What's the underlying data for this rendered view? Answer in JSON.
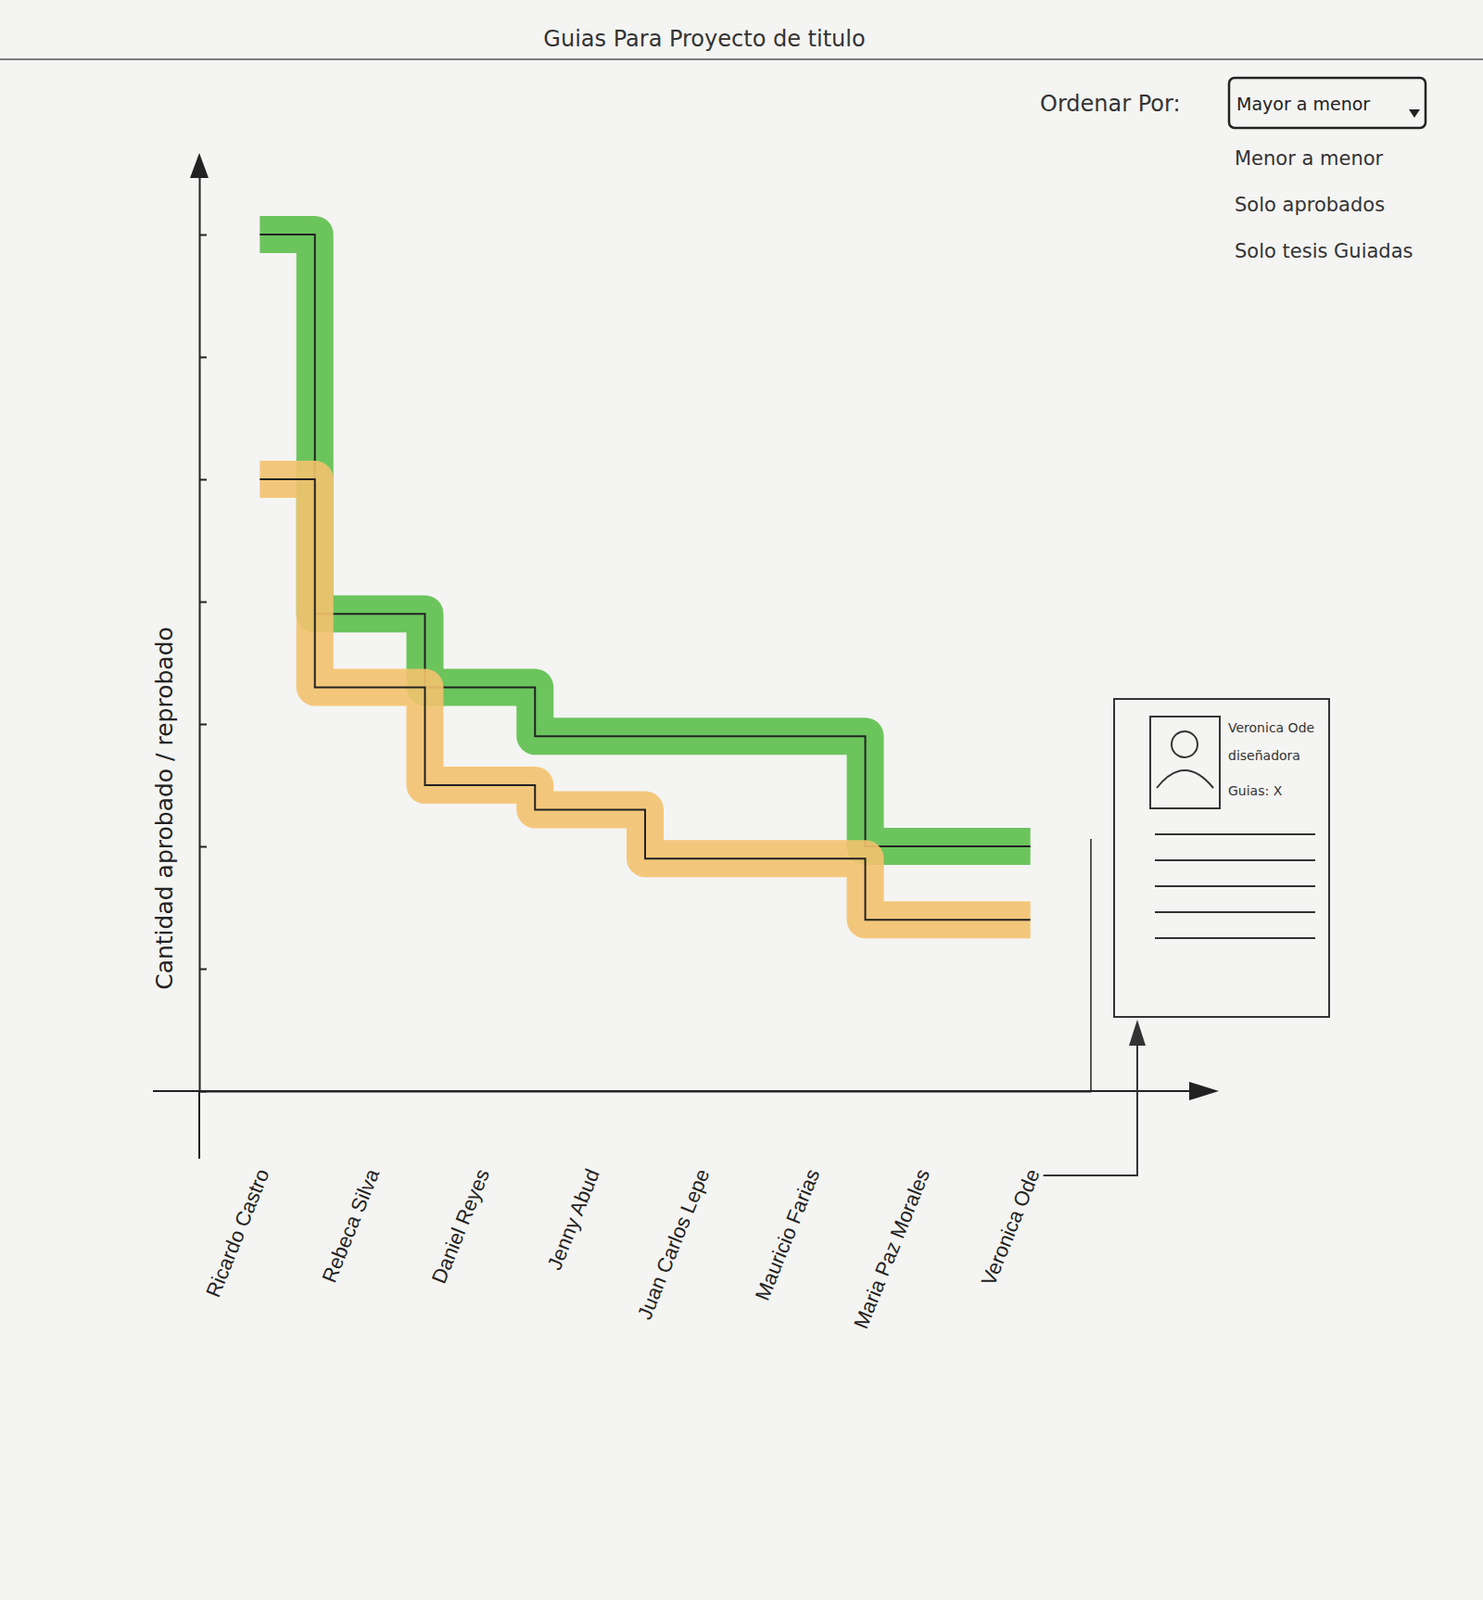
{
  "chart_data": {
    "type": "line",
    "title": "Guias Para Proyecto de titulo",
    "y_label": "Cantidad aprobado / reprobado",
    "categories": [
      "Ricardo Castro",
      "Rebeca Silva",
      "Daniel Reyes",
      "Jenny Abud",
      "Juan Carlos Lepe",
      "Mauricio Farias",
      "Maria Paz Morales",
      "Veronica Ode"
    ],
    "series": [
      {
        "color": "#5dbf4c",
        "values": [
          7.0,
          3.9,
          3.3,
          2.9,
          2.9,
          2.9,
          2.0,
          2.0
        ]
      },
      {
        "color": "#f3c26e",
        "values": [
          5.0,
          3.3,
          2.5,
          2.3,
          1.9,
          1.9,
          1.4,
          1.4
        ]
      }
    ],
    "ylim": [
      0,
      7.5
    ],
    "yticks": [
      1,
      2,
      3,
      4,
      5,
      6,
      7
    ],
    "tick_labels": "x"
  },
  "controls": {
    "label": "Ordenar Por:",
    "selected": "Mayor a menor",
    "options": [
      "Menor a menor",
      "Solo aprobados",
      "Solo tesis Guiadas"
    ]
  },
  "card": {
    "name": "Veronica Ode",
    "role": "diseñadora",
    "guias": "Guias: X"
  }
}
